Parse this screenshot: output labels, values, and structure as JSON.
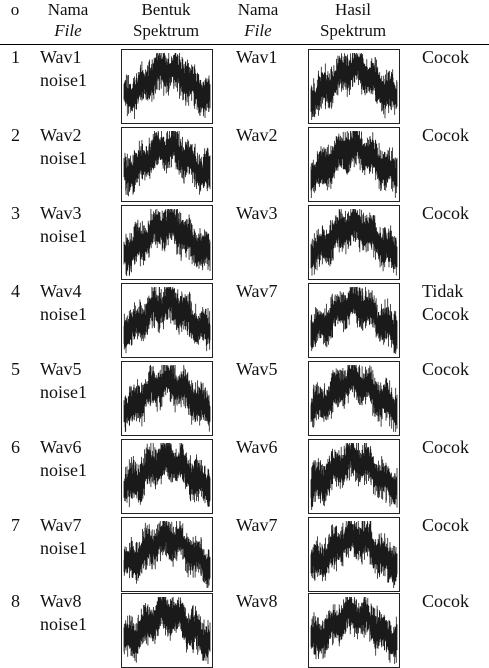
{
  "header": {
    "no": "o",
    "nama": "Nama",
    "file": "File",
    "bentuk": "Bentuk",
    "spektrum": "Spektrum",
    "nama2": "Nama",
    "file2": "File",
    "hasil": "Hasil",
    "spektrum2": "Spektrum"
  },
  "rows": [
    {
      "no": "1",
      "name": "Wav1",
      "noise": "noise1",
      "result": "Wav1",
      "status": [
        "Cocok"
      ]
    },
    {
      "no": "2",
      "name": "Wav2",
      "noise": "noise1",
      "result": "Wav2",
      "status": [
        "Cocok"
      ]
    },
    {
      "no": "3",
      "name": "Wav3",
      "noise": "noise1",
      "result": "Wav3",
      "status": [
        "Cocok"
      ]
    },
    {
      "no": "4",
      "name": "Wav4",
      "noise": "noise1",
      "result": "Wav7",
      "status": [
        "Tidak",
        "Cocok"
      ]
    },
    {
      "no": "5",
      "name": "Wav5",
      "noise": "noise1",
      "result": "Wav5",
      "status": [
        "Cocok"
      ]
    },
    {
      "no": "6",
      "name": "Wav6",
      "noise": "noise1",
      "result": "Wav6",
      "status": [
        "Cocok"
      ]
    },
    {
      "no": "7",
      "name": "Wav7",
      "noise": "noise1",
      "result": "Wav7",
      "status": [
        "Cocok"
      ]
    },
    {
      "no": "8",
      "name": "Wav8",
      "noise": "noise1",
      "result": "Wav8",
      "status": [
        "Cocok"
      ]
    }
  ],
  "colors": {
    "line": "#000000",
    "background": "#ffffff",
    "spectrum": "#1a1a1a"
  }
}
